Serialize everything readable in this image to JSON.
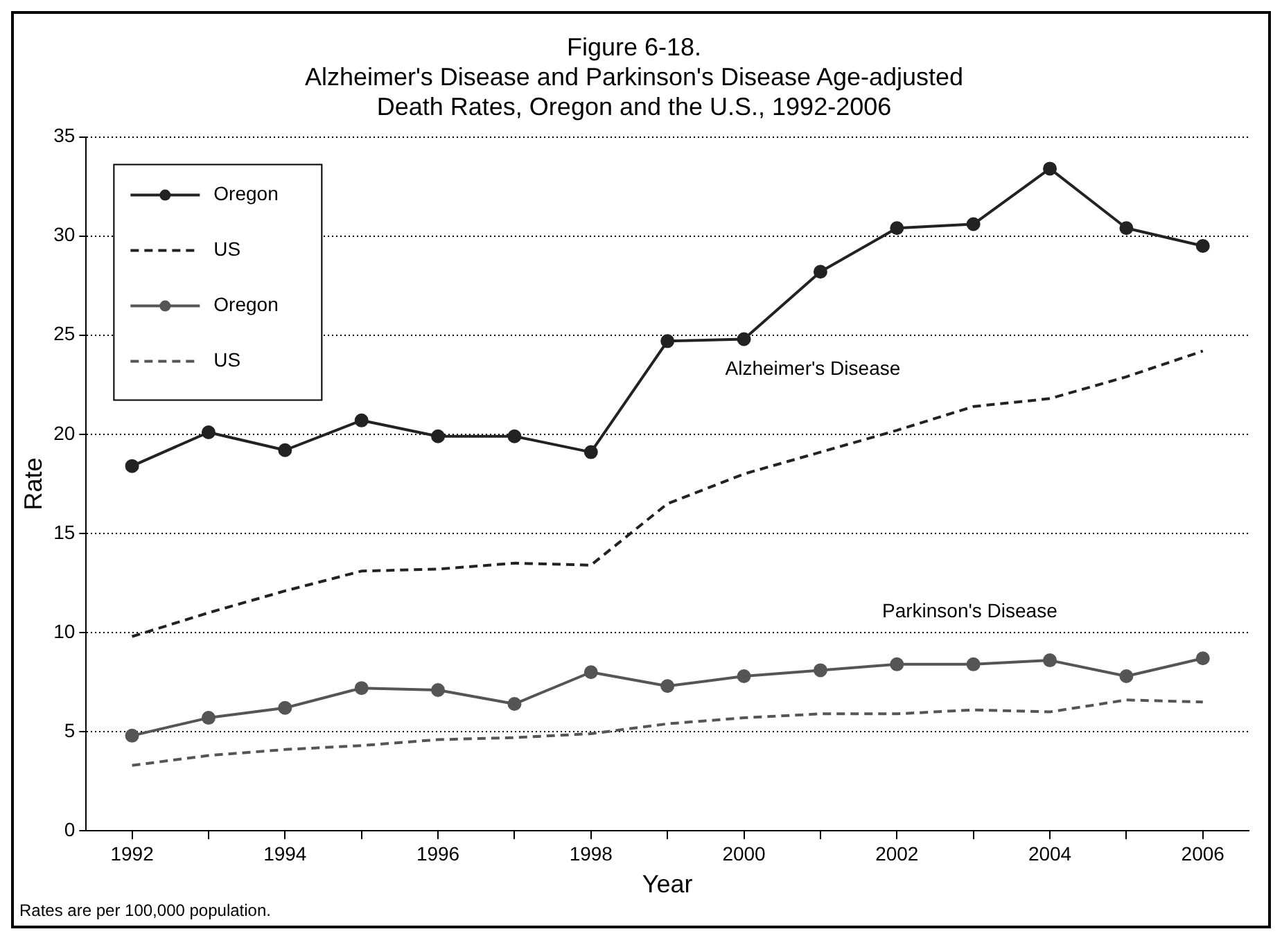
{
  "chart_data": {
    "type": "line",
    "title": "Figure 6-18.\nAlzheimer's Disease and Parkinson's Disease Age-adjusted\nDeath Rates, Oregon and the U.S., 1992-2006",
    "xlabel": "Year",
    "ylabel": "Rate",
    "x": [
      1992,
      1993,
      1994,
      1995,
      1996,
      1997,
      1998,
      1999,
      2000,
      2001,
      2002,
      2003,
      2004,
      2005,
      2006
    ],
    "series": [
      {
        "name": "Oregon",
        "color": "#222222",
        "marker": "circle",
        "line_style": "solid",
        "values": [
          18.4,
          20.1,
          19.2,
          20.7,
          19.9,
          19.9,
          19.1,
          24.7,
          24.8,
          28.2,
          30.4,
          30.6,
          33.4,
          30.4,
          29.5
        ]
      },
      {
        "name": "US",
        "color": "#222222",
        "marker": "none",
        "line_style": "dashed",
        "values": [
          9.8,
          11.0,
          12.1,
          13.1,
          13.2,
          13.5,
          13.4,
          16.5,
          18.0,
          19.1,
          20.2,
          21.4,
          21.8,
          22.9,
          24.2
        ]
      },
      {
        "name": "Oregon",
        "color": "#555555",
        "marker": "circle",
        "line_style": "solid",
        "values": [
          4.8,
          5.7,
          6.2,
          7.2,
          7.1,
          6.4,
          8.0,
          7.3,
          7.8,
          8.1,
          8.4,
          8.4,
          8.6,
          7.8,
          8.7
        ]
      },
      {
        "name": "US",
        "color": "#555555",
        "marker": "none",
        "line_style": "dashed",
        "values": [
          3.3,
          3.8,
          4.1,
          4.3,
          4.6,
          4.7,
          4.9,
          5.4,
          5.7,
          5.9,
          5.9,
          6.1,
          6.0,
          6.6,
          6.5
        ]
      }
    ],
    "xlim": [
      1991.4,
      2006.6
    ],
    "xticks": [
      1992,
      {
        "value": 1993,
        "label": null
      },
      1994,
      {
        "value": 1995,
        "label": null
      },
      1996,
      {
        "value": 1997,
        "label": null
      },
      1998,
      {
        "value": 1999,
        "label": null
      },
      2000,
      {
        "value": 2001,
        "label": null
      },
      2002,
      {
        "value": 2003,
        "label": null
      },
      2004,
      {
        "value": 2005,
        "label": null
      },
      2006
    ],
    "ylim": [
      0,
      35
    ],
    "yticks": [
      0,
      5,
      10,
      15,
      20,
      25,
      30,
      35
    ],
    "grid": "y",
    "legend": "top left",
    "annotations": [
      "Alzheimer's Disease",
      "Parkinson's Disease",
      "Rates are per 100,000 population."
    ]
  }
}
